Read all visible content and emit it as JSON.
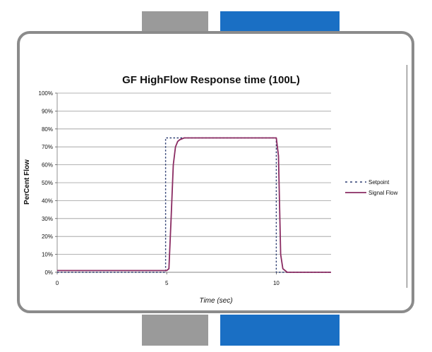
{
  "colors": {
    "tab_gray": "#9a9a9a",
    "tab_blue": "#1a6fc4",
    "frame": "#8b8b8b",
    "setpoint": "#2f3f73",
    "signal": "#8a2b62"
  },
  "chart_data": {
    "type": "line",
    "title": "GF HighFlow Response time (100L)",
    "xlabel": "Time (sec)",
    "ylabel": "PerCent Flow",
    "xlim": [
      0,
      12.5
    ],
    "ylim": [
      0,
      100
    ],
    "x_ticks": [
      "0",
      "5",
      "10"
    ],
    "x_tick_values": [
      0,
      5,
      10
    ],
    "y_ticks": [
      "0%",
      "10%",
      "20%",
      "30%",
      "40%",
      "50%",
      "60%",
      "70%",
      "80%",
      "90%",
      "100%"
    ],
    "y_tick_values": [
      0,
      10,
      20,
      30,
      40,
      50,
      60,
      70,
      80,
      90,
      100
    ],
    "grid": true,
    "legend_position": "right",
    "series": [
      {
        "name": "Setpoint",
        "style": "dotted",
        "x": [
          0,
          4.95,
          4.95,
          10.0,
          10.0,
          12.5
        ],
        "y": [
          0,
          0,
          75,
          75,
          0,
          0
        ]
      },
      {
        "name": "Signal Flow",
        "style": "solid",
        "x": [
          0,
          5.0,
          5.1,
          5.2,
          5.3,
          5.4,
          5.5,
          5.6,
          5.8,
          6.2,
          7.0,
          9.9,
          10.0,
          10.1,
          10.2,
          10.3,
          10.5,
          11.0,
          12.5
        ],
        "y": [
          1,
          1,
          2,
          30,
          60,
          70,
          73,
          74,
          75,
          75,
          75,
          75,
          75,
          65,
          10,
          2,
          0,
          0,
          0
        ]
      }
    ]
  }
}
